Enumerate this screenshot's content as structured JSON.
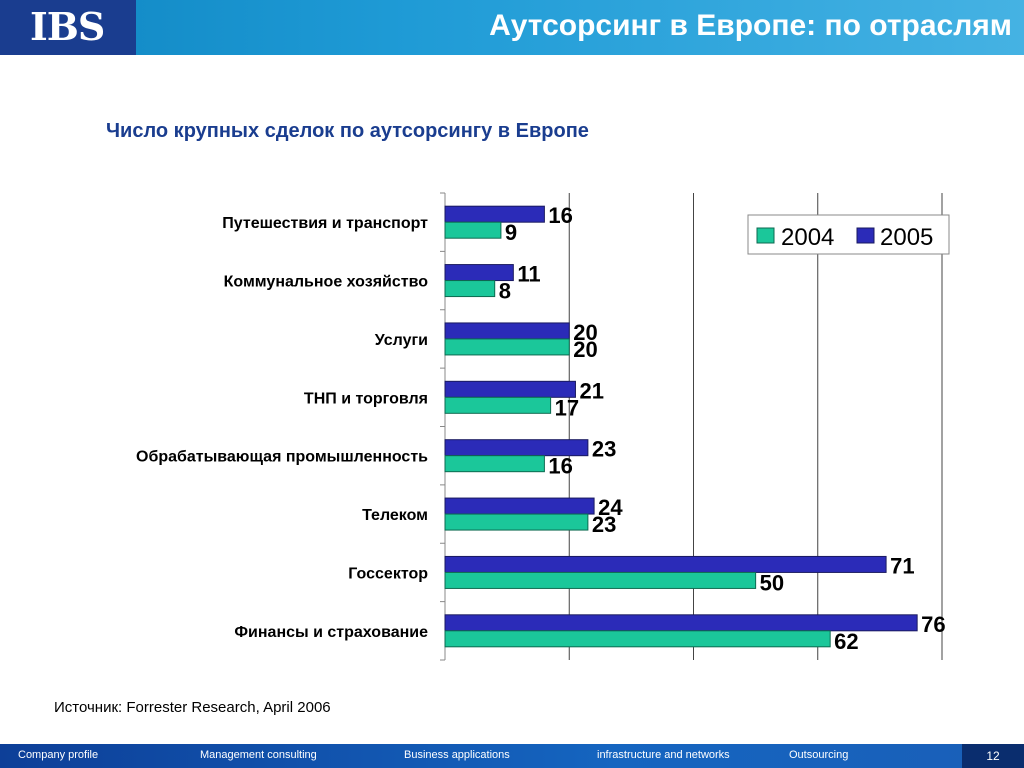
{
  "header": {
    "logo": "IBS",
    "title": "Аутсорсинг в Европе: по отраслям"
  },
  "chart_data": {
    "type": "bar",
    "orientation": "horizontal",
    "title": "Число крупных сделок по аутсорсингу в Европе",
    "categories": [
      "Путешествия и транспорт",
      "Коммунальное хозяйство",
      "Услуги",
      "ТНП и торговля",
      "Обрабатывающая промышленность",
      "Телеком",
      "Госсектор",
      "Финансы и страхование"
    ],
    "series": [
      {
        "name": "2004",
        "color": "#1bc79a",
        "values": [
          9,
          8,
          20,
          17,
          16,
          23,
          50,
          62
        ]
      },
      {
        "name": "2005",
        "color": "#2b2bb8",
        "values": [
          16,
          11,
          20,
          21,
          23,
          24,
          71,
          76
        ]
      }
    ],
    "xlim": [
      0,
      80
    ],
    "grid": true,
    "legend": "top-right"
  },
  "source": "Источник: Forrester Research, April 2006",
  "footer": {
    "items": [
      "Company profile",
      "Management consulting",
      "Business applications",
      "infrastructure and networks",
      "Outsourcing"
    ],
    "page_number": "12"
  }
}
